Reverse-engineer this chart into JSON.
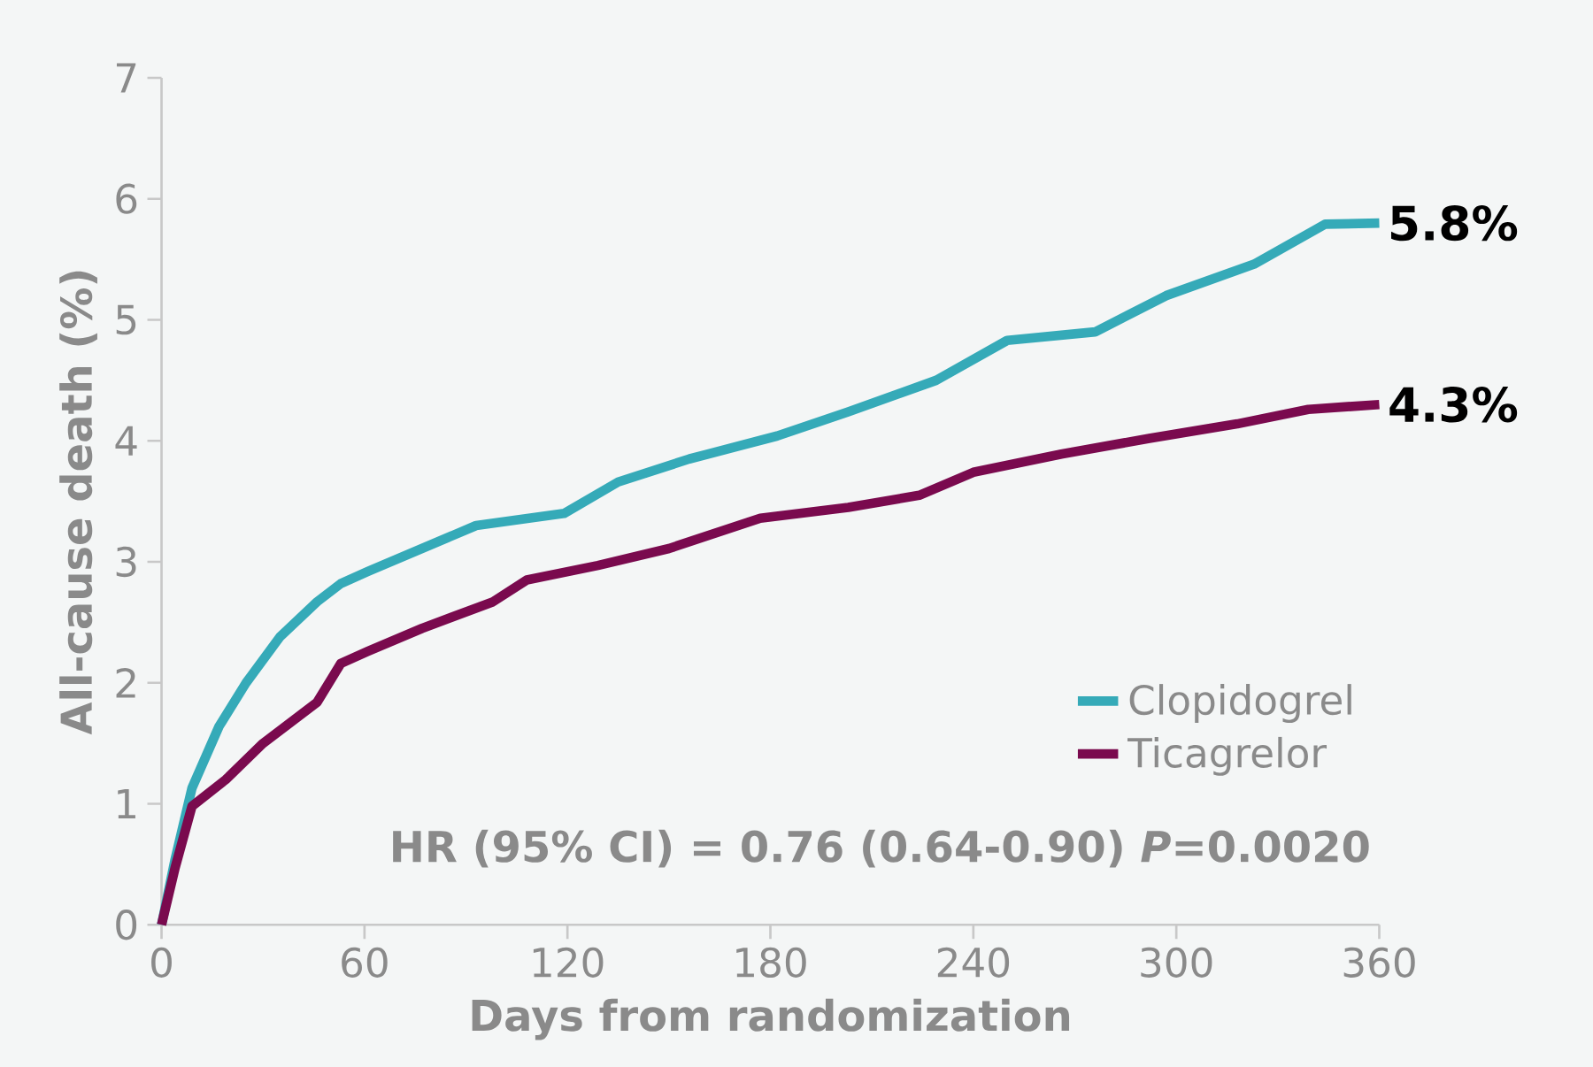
{
  "chart_data": {
    "type": "line",
    "xlabel": "Days from randomization",
    "ylabel": "All-cause death (%)",
    "x": [
      0,
      4,
      9,
      17,
      25,
      35,
      46,
      53,
      61,
      77,
      93,
      119,
      135,
      156,
      182,
      203,
      229,
      250,
      276,
      297,
      323,
      344,
      360
    ],
    "series": [
      {
        "name": "Clopidogrel",
        "color": "#35aab8",
        "values": [
          0,
          0.54,
          1.13,
          1.64,
          2.0,
          2.38,
          2.67,
          2.82,
          2.92,
          3.11,
          3.3,
          3.4,
          3.66,
          3.85,
          4.04,
          4.24,
          4.5,
          4.83,
          4.9,
          5.2,
          5.46,
          5.79,
          5.8
        ]
      },
      {
        "name": "Ticagrelor",
        "color": "#7a0a4e",
        "x": [
          0,
          4,
          9,
          19,
          30,
          46,
          53,
          61,
          77,
          98,
          108,
          129,
          150,
          177,
          203,
          224,
          240,
          266,
          292,
          318,
          339,
          360
        ],
        "values": [
          0,
          0.47,
          0.98,
          1.2,
          1.5,
          1.84,
          2.16,
          2.26,
          2.45,
          2.67,
          2.85,
          2.97,
          3.11,
          3.36,
          3.45,
          3.55,
          3.74,
          3.89,
          4.02,
          4.14,
          4.26,
          4.3
        ]
      }
    ],
    "xlim": [
      0,
      360
    ],
    "xticks": [
      0,
      60,
      120,
      180,
      240,
      300,
      360
    ],
    "ylim": [
      0,
      7
    ],
    "yticks": [
      0,
      1,
      2,
      3,
      4,
      5,
      6,
      7
    ],
    "legend": "bottom right",
    "grid": false,
    "marker": "none",
    "line_style": "solid",
    "annotations": [
      {
        "text": "5.8%",
        "x": 360,
        "y": 5.8
      },
      {
        "text": "4.3%",
        "x": 360,
        "y": 4.3
      },
      "HR (95% CI) = 0.76 (0.64-0.90) *P*=0.0020"
    ]
  }
}
